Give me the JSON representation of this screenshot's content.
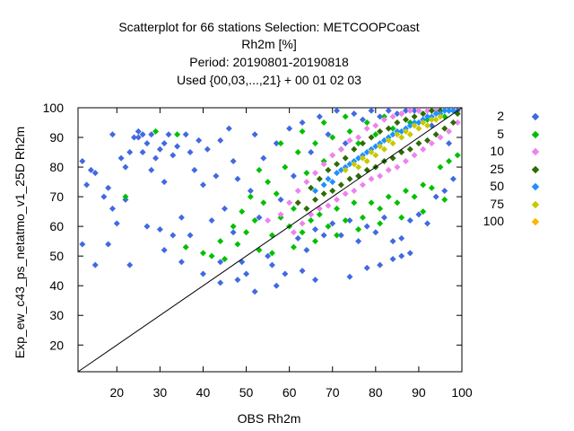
{
  "header": {
    "line1": "Scatterplot for   66 stations Selection: METCOOPCoast",
    "line2": "Rh2m [%]",
    "line3": "Period: 20190801-20190818",
    "line4": "Used {00,03,...,21} + 00 01 02 03"
  },
  "chart_data": {
    "type": "scatter",
    "title": "Scatterplot for   66 stations Selection: METCOOPCoast",
    "xlabel": "OBS Rh2m",
    "ylabel": "Exp_ew_c43_ps_netatmo_v1_25D Rh2m",
    "xlim": [
      11,
      100
    ],
    "ylim": [
      11,
      100
    ],
    "xticks": [
      20,
      30,
      40,
      50,
      60,
      70,
      80,
      90,
      100
    ],
    "yticks": [
      20,
      30,
      40,
      50,
      60,
      70,
      80,
      90,
      100
    ],
    "grid": false,
    "legend_position": "right",
    "reference_line": "y = x",
    "series": [
      {
        "name": "2",
        "color": "#4169e1",
        "points": [
          [
            12,
            82
          ],
          [
            12,
            54
          ],
          [
            13,
            74
          ],
          [
            14,
            79
          ],
          [
            15,
            47
          ],
          [
            17,
            70
          ],
          [
            18,
            73
          ],
          [
            19,
            66
          ],
          [
            19,
            91
          ],
          [
            20,
            61
          ],
          [
            21,
            83
          ],
          [
            22,
            80
          ],
          [
            22,
            69
          ],
          [
            23,
            85
          ],
          [
            24,
            90
          ],
          [
            25,
            92
          ],
          [
            26,
            85
          ],
          [
            27,
            88
          ],
          [
            28,
            91
          ],
          [
            28,
            79
          ],
          [
            29,
            83
          ],
          [
            30,
            86
          ],
          [
            30,
            59
          ],
          [
            31,
            88
          ],
          [
            31,
            52
          ],
          [
            32,
            91
          ],
          [
            33,
            84
          ],
          [
            33,
            57
          ],
          [
            34,
            87
          ],
          [
            35,
            63
          ],
          [
            36,
            91
          ],
          [
            37,
            85
          ],
          [
            37,
            57
          ],
          [
            38,
            79
          ],
          [
            39,
            89
          ],
          [
            40,
            74
          ],
          [
            40,
            44
          ],
          [
            41,
            86
          ],
          [
            42,
            62
          ],
          [
            43,
            77
          ],
          [
            44,
            48
          ],
          [
            44,
            89
          ],
          [
            45,
            66
          ],
          [
            46,
            93
          ],
          [
            47,
            58
          ],
          [
            47,
            82
          ],
          [
            48,
            76
          ],
          [
            49,
            48
          ],
          [
            50,
            44
          ],
          [
            51,
            72
          ],
          [
            52,
            91
          ],
          [
            53,
            63
          ],
          [
            54,
            83
          ],
          [
            55,
            50
          ],
          [
            56,
            47
          ],
          [
            57,
            88
          ],
          [
            58,
            69
          ],
          [
            59,
            44
          ],
          [
            60,
            93
          ],
          [
            61,
            77
          ],
          [
            62,
            56
          ],
          [
            63,
            95
          ],
          [
            64,
            52
          ],
          [
            65,
            85
          ],
          [
            66,
            59
          ],
          [
            67,
            97
          ],
          [
            68,
            57
          ],
          [
            69,
            91
          ],
          [
            70,
            61
          ],
          [
            71,
            99
          ],
          [
            72,
            57
          ],
          [
            73,
            88
          ],
          [
            74,
            62
          ],
          [
            75,
            98
          ],
          [
            76,
            55
          ],
          [
            77,
            96
          ],
          [
            78,
            60
          ],
          [
            79,
            99
          ],
          [
            80,
            58
          ],
          [
            81,
            97
          ],
          [
            82,
            63
          ],
          [
            83,
            99
          ],
          [
            84,
            55
          ],
          [
            85,
            98
          ],
          [
            86,
            56
          ],
          [
            87,
            99
          ],
          [
            88,
            62
          ],
          [
            89,
            99
          ],
          [
            90,
            64
          ],
          [
            91,
            96
          ],
          [
            92,
            61
          ],
          [
            93,
            94
          ],
          [
            94,
            70
          ],
          [
            95,
            99
          ],
          [
            96,
            72
          ],
          [
            97,
            88
          ],
          [
            98,
            76
          ],
          [
            99,
            99
          ],
          [
            25,
            90
          ],
          [
            27,
            60
          ],
          [
            15,
            78
          ],
          [
            18,
            54
          ],
          [
            26,
            91
          ],
          [
            31,
            75
          ],
          [
            35,
            48
          ],
          [
            23,
            47
          ],
          [
            44,
            41
          ],
          [
            48,
            42
          ],
          [
            52,
            38
          ],
          [
            57,
            40
          ],
          [
            63,
            45
          ],
          [
            66,
            42
          ],
          [
            74,
            43
          ],
          [
            78,
            46
          ],
          [
            81,
            47
          ],
          [
            84,
            49
          ],
          [
            86,
            50
          ],
          [
            88,
            51
          ]
        ]
      },
      {
        "name": "5",
        "color": "#00c000",
        "points": [
          [
            22,
            70
          ],
          [
            29,
            92
          ],
          [
            34,
            91
          ],
          [
            36,
            53
          ],
          [
            40,
            51
          ],
          [
            42,
            50
          ],
          [
            44,
            55
          ],
          [
            45,
            49
          ],
          [
            47,
            60
          ],
          [
            48,
            54
          ],
          [
            49,
            65
          ],
          [
            50,
            58
          ],
          [
            51,
            70
          ],
          [
            52,
            62
          ],
          [
            53,
            52
          ],
          [
            54,
            68
          ],
          [
            55,
            75
          ],
          [
            56,
            57
          ],
          [
            57,
            71
          ],
          [
            58,
            63
          ],
          [
            59,
            80
          ],
          [
            60,
            60
          ],
          [
            61,
            66
          ],
          [
            62,
            85
          ],
          [
            63,
            58
          ],
          [
            64,
            78
          ],
          [
            65,
            62
          ],
          [
            66,
            88
          ],
          [
            67,
            64
          ],
          [
            68,
            82
          ],
          [
            69,
            60
          ],
          [
            70,
            90
          ],
          [
            71,
            66
          ],
          [
            72,
            86
          ],
          [
            73,
            62
          ],
          [
            74,
            92
          ],
          [
            75,
            68
          ],
          [
            76,
            88
          ],
          [
            77,
            63
          ],
          [
            78,
            95
          ],
          [
            79,
            68
          ],
          [
            80,
            91
          ],
          [
            81,
            66
          ],
          [
            82,
            97
          ],
          [
            83,
            70
          ],
          [
            84,
            93
          ],
          [
            85,
            68
          ],
          [
            86,
            98
          ],
          [
            87,
            72
          ],
          [
            88,
            95
          ],
          [
            89,
            70
          ],
          [
            90,
            99
          ],
          [
            91,
            74
          ],
          [
            92,
            96
          ],
          [
            93,
            73
          ],
          [
            94,
            99
          ],
          [
            95,
            80
          ],
          [
            96,
            97
          ],
          [
            97,
            82
          ],
          [
            98,
            99
          ],
          [
            99,
            84
          ],
          [
            53,
            79
          ],
          [
            58,
            88
          ],
          [
            63,
            92
          ],
          [
            68,
            95
          ],
          [
            73,
            97
          ],
          [
            56,
            51
          ],
          [
            61,
            53
          ],
          [
            66,
            55
          ],
          [
            71,
            57
          ],
          [
            76,
            59
          ],
          [
            81,
            61
          ],
          [
            86,
            63
          ],
          [
            91,
            65
          ],
          [
            96,
            69
          ]
        ]
      },
      {
        "name": "10",
        "color": "#ee82ee",
        "points": [
          [
            55,
            62
          ],
          [
            58,
            64
          ],
          [
            60,
            68
          ],
          [
            61,
            58
          ],
          [
            62,
            72
          ],
          [
            63,
            61
          ],
          [
            64,
            75
          ],
          [
            65,
            64
          ],
          [
            66,
            78
          ],
          [
            67,
            66
          ],
          [
            68,
            81
          ],
          [
            69,
            67
          ],
          [
            70,
            84
          ],
          [
            71,
            69
          ],
          [
            72,
            86
          ],
          [
            73,
            71
          ],
          [
            74,
            89
          ],
          [
            75,
            72
          ],
          [
            76,
            90
          ],
          [
            77,
            74
          ],
          [
            78,
            93
          ],
          [
            79,
            76
          ],
          [
            80,
            94
          ],
          [
            81,
            77
          ],
          [
            82,
            96
          ],
          [
            83,
            79
          ],
          [
            84,
            97
          ],
          [
            85,
            80
          ],
          [
            86,
            98
          ],
          [
            87,
            82
          ],
          [
            88,
            99
          ],
          [
            89,
            84
          ],
          [
            90,
            99
          ],
          [
            91,
            86
          ],
          [
            92,
            99
          ],
          [
            93,
            88
          ],
          [
            94,
            99
          ],
          [
            95,
            90
          ],
          [
            96,
            99
          ],
          [
            97,
            92
          ],
          [
            98,
            99
          ],
          [
            99,
            95
          ]
        ]
      },
      {
        "name": "25",
        "color": "#2e6b00",
        "points": [
          [
            62,
            68
          ],
          [
            64,
            66
          ],
          [
            65,
            73
          ],
          [
            66,
            69
          ],
          [
            67,
            76
          ],
          [
            68,
            71
          ],
          [
            69,
            79
          ],
          [
            70,
            72
          ],
          [
            71,
            81
          ],
          [
            72,
            74
          ],
          [
            73,
            83
          ],
          [
            74,
            76
          ],
          [
            75,
            86
          ],
          [
            76,
            77
          ],
          [
            77,
            88
          ],
          [
            78,
            79
          ],
          [
            79,
            90
          ],
          [
            80,
            80
          ],
          [
            81,
            92
          ],
          [
            82,
            82
          ],
          [
            83,
            93
          ],
          [
            84,
            83
          ],
          [
            85,
            95
          ],
          [
            86,
            85
          ],
          [
            87,
            96
          ],
          [
            88,
            86
          ],
          [
            89,
            97
          ],
          [
            90,
            88
          ],
          [
            91,
            98
          ],
          [
            92,
            89
          ],
          [
            93,
            99
          ],
          [
            94,
            91
          ],
          [
            95,
            99
          ],
          [
            96,
            93
          ],
          [
            97,
            99
          ],
          [
            98,
            95
          ],
          [
            99,
            98
          ]
        ]
      },
      {
        "name": "50",
        "color": "#1e90ff",
        "points": [
          [
            66,
            72
          ],
          [
            68,
            74
          ],
          [
            69,
            76
          ],
          [
            70,
            75
          ],
          [
            71,
            78
          ],
          [
            72,
            79
          ],
          [
            73,
            80
          ],
          [
            74,
            81
          ],
          [
            75,
            82
          ],
          [
            76,
            83
          ],
          [
            77,
            84
          ],
          [
            78,
            85
          ],
          [
            79,
            86
          ],
          [
            80,
            87
          ],
          [
            81,
            88
          ],
          [
            82,
            89
          ],
          [
            83,
            90
          ],
          [
            84,
            91
          ],
          [
            85,
            92
          ],
          [
            86,
            92
          ],
          [
            87,
            93
          ],
          [
            88,
            94
          ],
          [
            89,
            95
          ],
          [
            90,
            95
          ],
          [
            91,
            96
          ],
          [
            92,
            97
          ],
          [
            93,
            97
          ],
          [
            94,
            98
          ],
          [
            95,
            98
          ],
          [
            96,
            99
          ],
          [
            97,
            99
          ],
          [
            98,
            99
          ]
        ]
      },
      {
        "name": "75",
        "color": "#c8c800",
        "points": [
          [
            73,
            79
          ],
          [
            75,
            81
          ],
          [
            76,
            80
          ],
          [
            77,
            83
          ],
          [
            78,
            82
          ],
          [
            79,
            85
          ],
          [
            80,
            84
          ],
          [
            81,
            87
          ],
          [
            82,
            86
          ],
          [
            83,
            89
          ],
          [
            84,
            88
          ],
          [
            85,
            91
          ],
          [
            86,
            90
          ],
          [
            87,
            92
          ],
          [
            88,
            91
          ],
          [
            89,
            94
          ],
          [
            90,
            93
          ],
          [
            91,
            95
          ],
          [
            92,
            94
          ],
          [
            93,
            96
          ],
          [
            94,
            96
          ],
          [
            95,
            97
          ]
        ]
      },
      {
        "name": "100",
        "color": "#ffb400",
        "points": []
      }
    ]
  }
}
